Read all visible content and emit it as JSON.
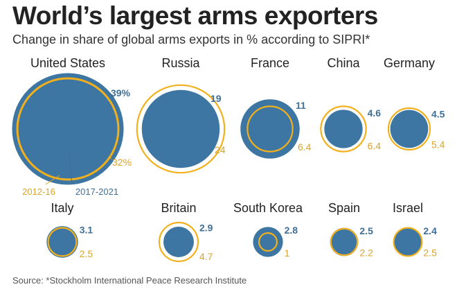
{
  "header": {
    "title": "World’s largest arms exporters",
    "subtitle": "Change in share of global arms exports in % according to SIPRI*"
  },
  "footer": {
    "source": "Source: *Stockholm International Peace Research Institute"
  },
  "colors": {
    "period_2012_16": "#f2b01c",
    "period_2017_2021": "#3d76a3",
    "label_2017_2021": "#3f6e96",
    "label_2012_16": "#d9a42a"
  },
  "chart_data": {
    "type": "bubble",
    "title": "World’s largest arms exporters",
    "subtitle": "Change in share of global arms exports in % according to SIPRI*",
    "legend": {
      "placement": "under-first-item",
      "entries": [
        {
          "name": "2012-16",
          "color": "#f2b01c"
        },
        {
          "name": "2017-2021",
          "color": "#3d76a3"
        }
      ]
    },
    "unit": "%",
    "series": [
      {
        "name": "2012-16",
        "values": [
          32,
          24,
          6.4,
          6.4,
          5.4,
          2.5,
          4.7,
          1,
          2.2,
          2.5
        ]
      },
      {
        "name": "2017-2021",
        "values": [
          39,
          19,
          11,
          4.6,
          4.5,
          3.1,
          2.9,
          2.8,
          2.5,
          2.4
        ]
      }
    ],
    "categories": [
      "United States",
      "Russia",
      "France",
      "China",
      "Germany",
      "Italy",
      "Britain",
      "South Korea",
      "Spain",
      "Israel"
    ],
    "items": [
      {
        "country": "United States",
        "share_2012_16": 32,
        "share_2017_2021": 39,
        "label_2012_16": "32%",
        "label_2017_2021": "39%"
      },
      {
        "country": "Russia",
        "share_2012_16": 24,
        "share_2017_2021": 19,
        "label_2012_16": "24",
        "label_2017_2021": "19"
      },
      {
        "country": "France",
        "share_2012_16": 6.4,
        "share_2017_2021": 11,
        "label_2012_16": "6.4",
        "label_2017_2021": "11"
      },
      {
        "country": "China",
        "share_2012_16": 6.4,
        "share_2017_2021": 4.6,
        "label_2012_16": "6.4",
        "label_2017_2021": "4.6"
      },
      {
        "country": "Germany",
        "share_2012_16": 5.4,
        "share_2017_2021": 4.5,
        "label_2012_16": "5.4",
        "label_2017_2021": "4.5"
      },
      {
        "country": "Italy",
        "share_2012_16": 2.5,
        "share_2017_2021": 3.1,
        "label_2012_16": "2.5",
        "label_2017_2021": "3.1"
      },
      {
        "country": "Britain",
        "share_2012_16": 4.7,
        "share_2017_2021": 2.9,
        "label_2012_16": "4.7",
        "label_2017_2021": "2.9"
      },
      {
        "country": "South Korea",
        "share_2012_16": 1,
        "share_2017_2021": 2.8,
        "label_2012_16": "1",
        "label_2017_2021": "2.8"
      },
      {
        "country": "Spain",
        "share_2012_16": 2.2,
        "share_2017_2021": 2.5,
        "label_2012_16": "2.2",
        "label_2017_2021": "2.5"
      },
      {
        "country": "Israel",
        "share_2012_16": 2.5,
        "share_2017_2021": 2.4,
        "label_2012_16": "2.5",
        "label_2017_2021": "2.4"
      }
    ]
  }
}
